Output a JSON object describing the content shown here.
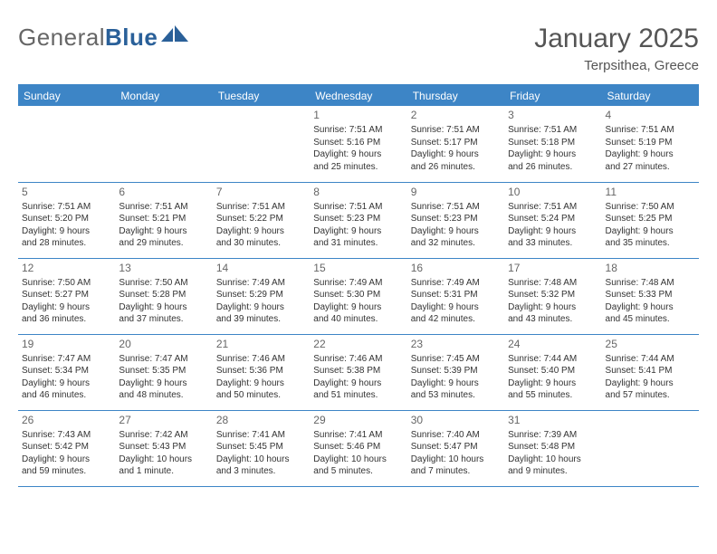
{
  "brand": {
    "word1": "General",
    "word2": "Blue"
  },
  "title": {
    "month": "January 2025",
    "location": "Terpsithea, Greece"
  },
  "colors": {
    "header_bg": "#3d85c6",
    "header_text": "#ffffff",
    "grid_line": "#3d85c6",
    "brand_grey": "#666666",
    "brand_blue": "#2a6099",
    "text": "#333333",
    "daynum": "#666666",
    "page_bg": "#ffffff"
  },
  "typography": {
    "title_fontsize": 30,
    "location_fontsize": 15,
    "th_fontsize": 12,
    "cell_fontsize": 10,
    "daynum_fontsize": 12
  },
  "day_headers": [
    "Sunday",
    "Monday",
    "Tuesday",
    "Wednesday",
    "Thursday",
    "Friday",
    "Saturday"
  ],
  "weeks": [
    [
      {
        "num": "",
        "lines": []
      },
      {
        "num": "",
        "lines": []
      },
      {
        "num": "",
        "lines": []
      },
      {
        "num": "1",
        "lines": [
          "Sunrise: 7:51 AM",
          "Sunset: 5:16 PM",
          "Daylight: 9 hours",
          "and 25 minutes."
        ]
      },
      {
        "num": "2",
        "lines": [
          "Sunrise: 7:51 AM",
          "Sunset: 5:17 PM",
          "Daylight: 9 hours",
          "and 26 minutes."
        ]
      },
      {
        "num": "3",
        "lines": [
          "Sunrise: 7:51 AM",
          "Sunset: 5:18 PM",
          "Daylight: 9 hours",
          "and 26 minutes."
        ]
      },
      {
        "num": "4",
        "lines": [
          "Sunrise: 7:51 AM",
          "Sunset: 5:19 PM",
          "Daylight: 9 hours",
          "and 27 minutes."
        ]
      }
    ],
    [
      {
        "num": "5",
        "lines": [
          "Sunrise: 7:51 AM",
          "Sunset: 5:20 PM",
          "Daylight: 9 hours",
          "and 28 minutes."
        ]
      },
      {
        "num": "6",
        "lines": [
          "Sunrise: 7:51 AM",
          "Sunset: 5:21 PM",
          "Daylight: 9 hours",
          "and 29 minutes."
        ]
      },
      {
        "num": "7",
        "lines": [
          "Sunrise: 7:51 AM",
          "Sunset: 5:22 PM",
          "Daylight: 9 hours",
          "and 30 minutes."
        ]
      },
      {
        "num": "8",
        "lines": [
          "Sunrise: 7:51 AM",
          "Sunset: 5:23 PM",
          "Daylight: 9 hours",
          "and 31 minutes."
        ]
      },
      {
        "num": "9",
        "lines": [
          "Sunrise: 7:51 AM",
          "Sunset: 5:23 PM",
          "Daylight: 9 hours",
          "and 32 minutes."
        ]
      },
      {
        "num": "10",
        "lines": [
          "Sunrise: 7:51 AM",
          "Sunset: 5:24 PM",
          "Daylight: 9 hours",
          "and 33 minutes."
        ]
      },
      {
        "num": "11",
        "lines": [
          "Sunrise: 7:50 AM",
          "Sunset: 5:25 PM",
          "Daylight: 9 hours",
          "and 35 minutes."
        ]
      }
    ],
    [
      {
        "num": "12",
        "lines": [
          "Sunrise: 7:50 AM",
          "Sunset: 5:27 PM",
          "Daylight: 9 hours",
          "and 36 minutes."
        ]
      },
      {
        "num": "13",
        "lines": [
          "Sunrise: 7:50 AM",
          "Sunset: 5:28 PM",
          "Daylight: 9 hours",
          "and 37 minutes."
        ]
      },
      {
        "num": "14",
        "lines": [
          "Sunrise: 7:49 AM",
          "Sunset: 5:29 PM",
          "Daylight: 9 hours",
          "and 39 minutes."
        ]
      },
      {
        "num": "15",
        "lines": [
          "Sunrise: 7:49 AM",
          "Sunset: 5:30 PM",
          "Daylight: 9 hours",
          "and 40 minutes."
        ]
      },
      {
        "num": "16",
        "lines": [
          "Sunrise: 7:49 AM",
          "Sunset: 5:31 PM",
          "Daylight: 9 hours",
          "and 42 minutes."
        ]
      },
      {
        "num": "17",
        "lines": [
          "Sunrise: 7:48 AM",
          "Sunset: 5:32 PM",
          "Daylight: 9 hours",
          "and 43 minutes."
        ]
      },
      {
        "num": "18",
        "lines": [
          "Sunrise: 7:48 AM",
          "Sunset: 5:33 PM",
          "Daylight: 9 hours",
          "and 45 minutes."
        ]
      }
    ],
    [
      {
        "num": "19",
        "lines": [
          "Sunrise: 7:47 AM",
          "Sunset: 5:34 PM",
          "Daylight: 9 hours",
          "and 46 minutes."
        ]
      },
      {
        "num": "20",
        "lines": [
          "Sunrise: 7:47 AM",
          "Sunset: 5:35 PM",
          "Daylight: 9 hours",
          "and 48 minutes."
        ]
      },
      {
        "num": "21",
        "lines": [
          "Sunrise: 7:46 AM",
          "Sunset: 5:36 PM",
          "Daylight: 9 hours",
          "and 50 minutes."
        ]
      },
      {
        "num": "22",
        "lines": [
          "Sunrise: 7:46 AM",
          "Sunset: 5:38 PM",
          "Daylight: 9 hours",
          "and 51 minutes."
        ]
      },
      {
        "num": "23",
        "lines": [
          "Sunrise: 7:45 AM",
          "Sunset: 5:39 PM",
          "Daylight: 9 hours",
          "and 53 minutes."
        ]
      },
      {
        "num": "24",
        "lines": [
          "Sunrise: 7:44 AM",
          "Sunset: 5:40 PM",
          "Daylight: 9 hours",
          "and 55 minutes."
        ]
      },
      {
        "num": "25",
        "lines": [
          "Sunrise: 7:44 AM",
          "Sunset: 5:41 PM",
          "Daylight: 9 hours",
          "and 57 minutes."
        ]
      }
    ],
    [
      {
        "num": "26",
        "lines": [
          "Sunrise: 7:43 AM",
          "Sunset: 5:42 PM",
          "Daylight: 9 hours",
          "and 59 minutes."
        ]
      },
      {
        "num": "27",
        "lines": [
          "Sunrise: 7:42 AM",
          "Sunset: 5:43 PM",
          "Daylight: 10 hours",
          "and 1 minute."
        ]
      },
      {
        "num": "28",
        "lines": [
          "Sunrise: 7:41 AM",
          "Sunset: 5:45 PM",
          "Daylight: 10 hours",
          "and 3 minutes."
        ]
      },
      {
        "num": "29",
        "lines": [
          "Sunrise: 7:41 AM",
          "Sunset: 5:46 PM",
          "Daylight: 10 hours",
          "and 5 minutes."
        ]
      },
      {
        "num": "30",
        "lines": [
          "Sunrise: 7:40 AM",
          "Sunset: 5:47 PM",
          "Daylight: 10 hours",
          "and 7 minutes."
        ]
      },
      {
        "num": "31",
        "lines": [
          "Sunrise: 7:39 AM",
          "Sunset: 5:48 PM",
          "Daylight: 10 hours",
          "and 9 minutes."
        ]
      },
      {
        "num": "",
        "lines": []
      }
    ]
  ]
}
